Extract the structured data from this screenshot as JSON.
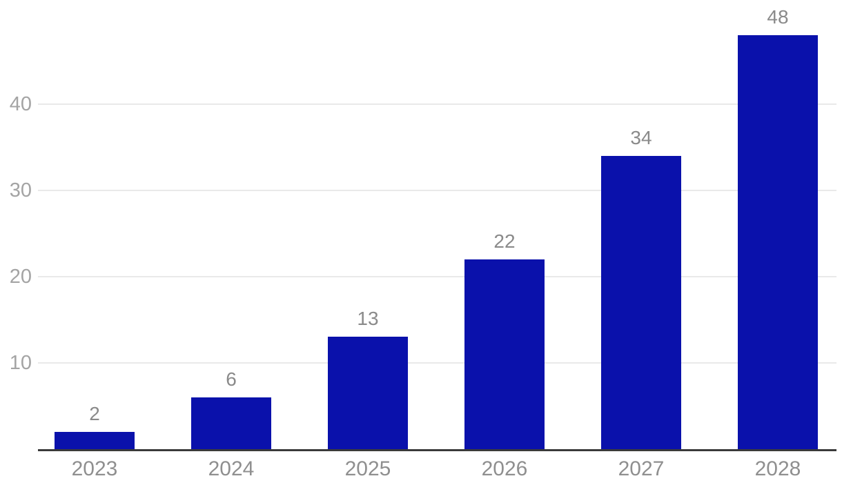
{
  "chart_data": {
    "type": "bar",
    "title": "",
    "categories": [
      "2023",
      "2024",
      "2025",
      "2026",
      "2027",
      "2028"
    ],
    "values": [
      2,
      6,
      13,
      22,
      34,
      48
    ],
    "data_labels": [
      "2",
      "6",
      "13",
      "22",
      "34",
      "48"
    ],
    "xlabel": "",
    "ylabel": "",
    "ylim": [
      0,
      50
    ],
    "yticks": [
      10,
      20,
      30,
      40
    ],
    "grid": true,
    "legend": false,
    "colors": {
      "bar": "#0a11ab",
      "value_label": "#8a8a8a",
      "x_tick_label": "#8f8f8f",
      "y_tick_label": "#a4a4a4",
      "gridline": "#e9e9e9",
      "axis_line": "#3a3a3a",
      "background": "#ffffff"
    }
  }
}
